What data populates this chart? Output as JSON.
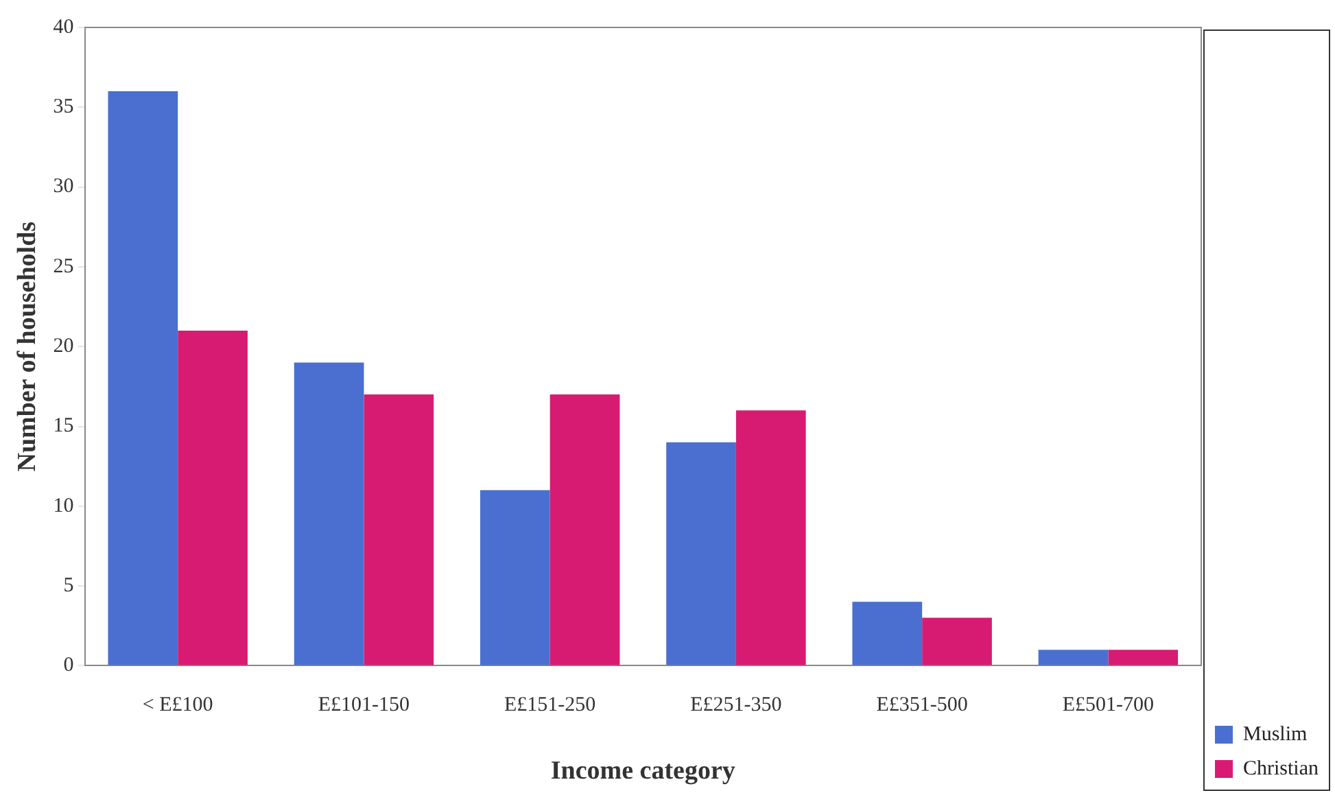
{
  "chart_data": {
    "type": "bar",
    "xlabel": "Income category",
    "ylabel": "Number of households",
    "categories": [
      "< E£100",
      "E£101-150",
      "E£151-250",
      "E£251-350",
      "E£351-500",
      "E£501-700"
    ],
    "series": [
      {
        "name": "Muslim",
        "color": "#4a6fd0",
        "values": [
          36,
          19,
          11,
          14,
          4,
          1
        ]
      },
      {
        "name": "Christian",
        "color": "#d81b72",
        "values": [
          21,
          17,
          17,
          16,
          3,
          1
        ]
      }
    ],
    "ylim": [
      0,
      40
    ],
    "yticks": [
      0,
      5,
      10,
      15,
      20,
      25,
      30,
      35,
      40
    ],
    "grid": false,
    "legend": "bottom right"
  }
}
